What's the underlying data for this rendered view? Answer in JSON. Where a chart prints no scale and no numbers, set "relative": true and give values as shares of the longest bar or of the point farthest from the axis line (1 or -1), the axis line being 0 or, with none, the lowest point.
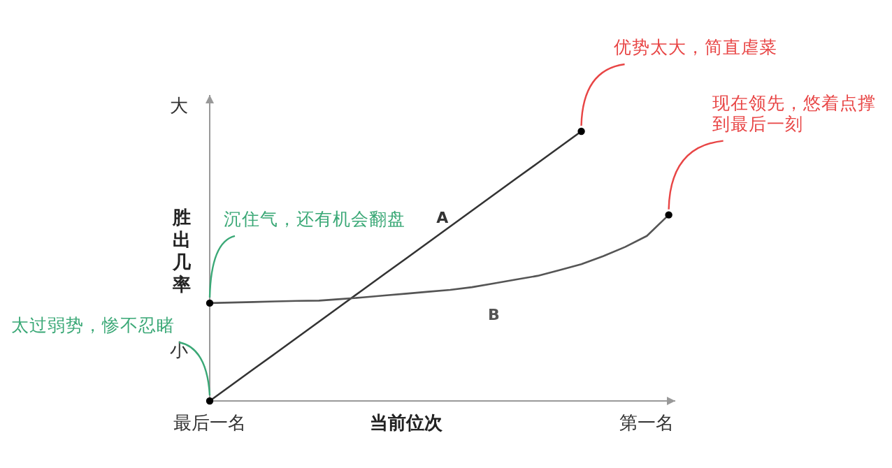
{
  "chart_data": {
    "type": "line",
    "relative": true,
    "xlabel": "当前位次",
    "ylabel": "胜出几率",
    "categories": [
      "最后一名",
      null,
      null,
      null,
      null,
      null,
      null,
      null,
      null,
      null,
      null,
      null,
      null,
      null,
      null,
      null,
      null,
      null,
      null,
      null,
      "第一名",
      null
    ],
    "series": [
      {
        "name": "A",
        "color": "#333333",
        "values": [
          0,
          0.059,
          0.118,
          0.176,
          0.235,
          0.294,
          0.353,
          0.412,
          0.471,
          0.529,
          0.588,
          0.647,
          0.706,
          0.765,
          0.824,
          0.882,
          0.941,
          1,
          null,
          null,
          null,
          null
        ]
      },
      {
        "name": "B",
        "color": "#555555",
        "values": [
          0.363,
          0.365,
          0.367,
          0.369,
          0.371,
          0.372,
          0.378,
          0.384,
          0.391,
          0.398,
          0.405,
          0.412,
          0.422,
          0.436,
          0.45,
          0.464,
          0.485,
          0.507,
          0.537,
          0.571,
          0.612,
          0.69
        ]
      }
    ],
    "annotations": [
      "大",
      "小",
      {
        "text": "太过弱势，惨不忍睹",
        "x": "最后一名",
        "y": 0
      },
      {
        "text": "沉住气，还有机会翻盘",
        "x": "最后一名",
        "y": 0.363
      },
      "优势太大，简直虐菜",
      "现在领先，悠着点撑到最后一刻"
    ],
    "marker": "none"
  }
}
